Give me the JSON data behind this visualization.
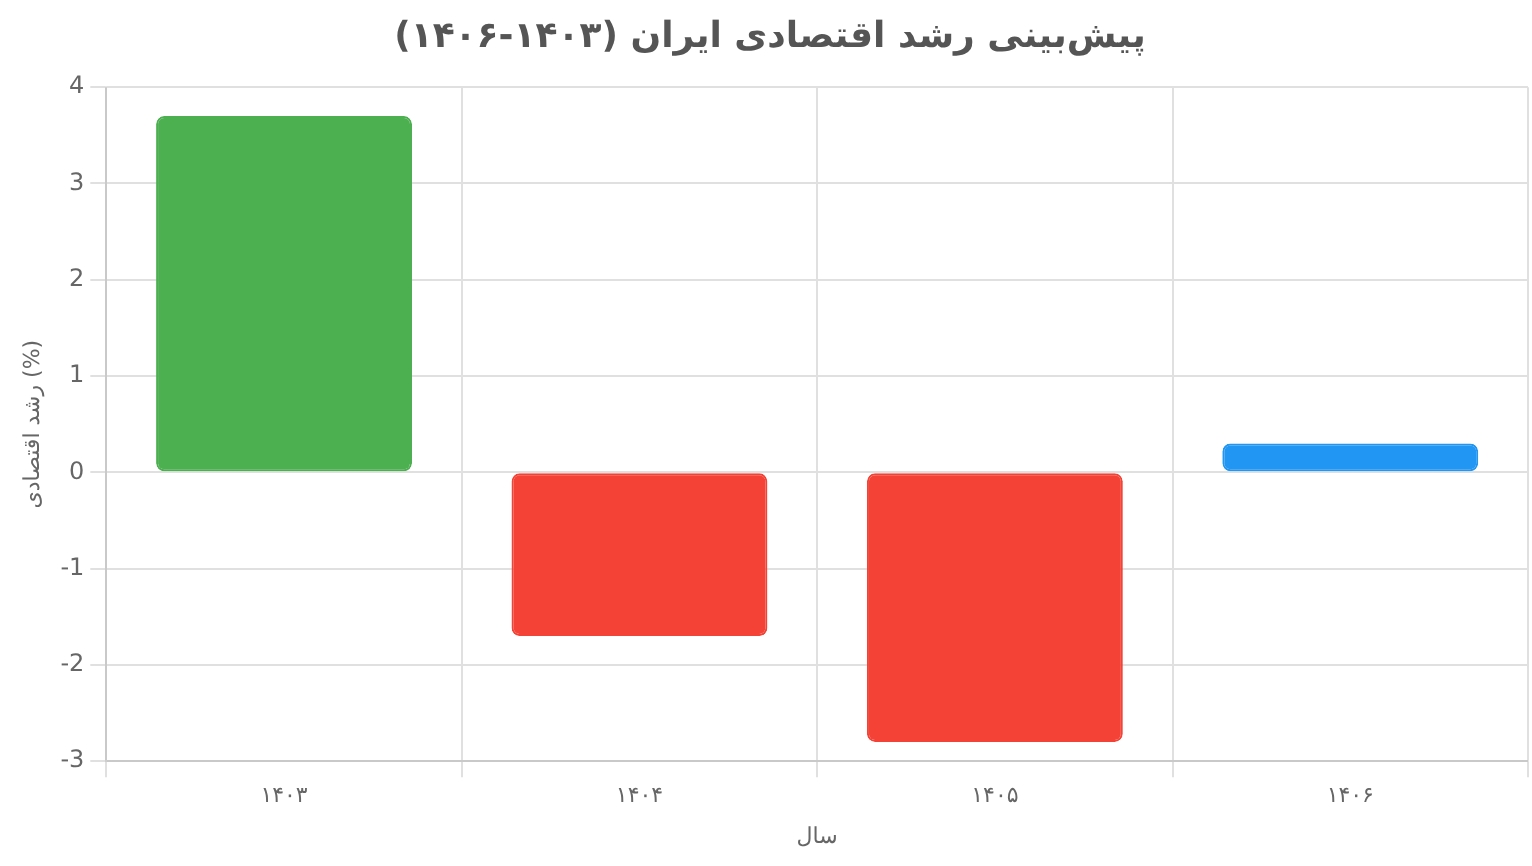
{
  "chart_data": {
    "type": "bar",
    "title": "پیش‌بینی رشد اقتصادی ایران (۱۴۰۳-۱۴۰۶)",
    "xlabel": "سال",
    "ylabel": "رشد اقتصادی (%)",
    "categories": [
      "۱۴۰۳",
      "۱۴۰۴",
      "۱۴۰۵",
      "۱۴۰۶"
    ],
    "values": [
      3.7,
      -1.7,
      -2.8,
      0.3
    ],
    "colors": [
      "#4caf50",
      "#f44336",
      "#f44336",
      "#2196f3"
    ],
    "ylim": [
      -3,
      4
    ],
    "yticks": [
      -3,
      -2,
      -1,
      0,
      1,
      2,
      3,
      4
    ],
    "grid": true,
    "legend": false
  }
}
